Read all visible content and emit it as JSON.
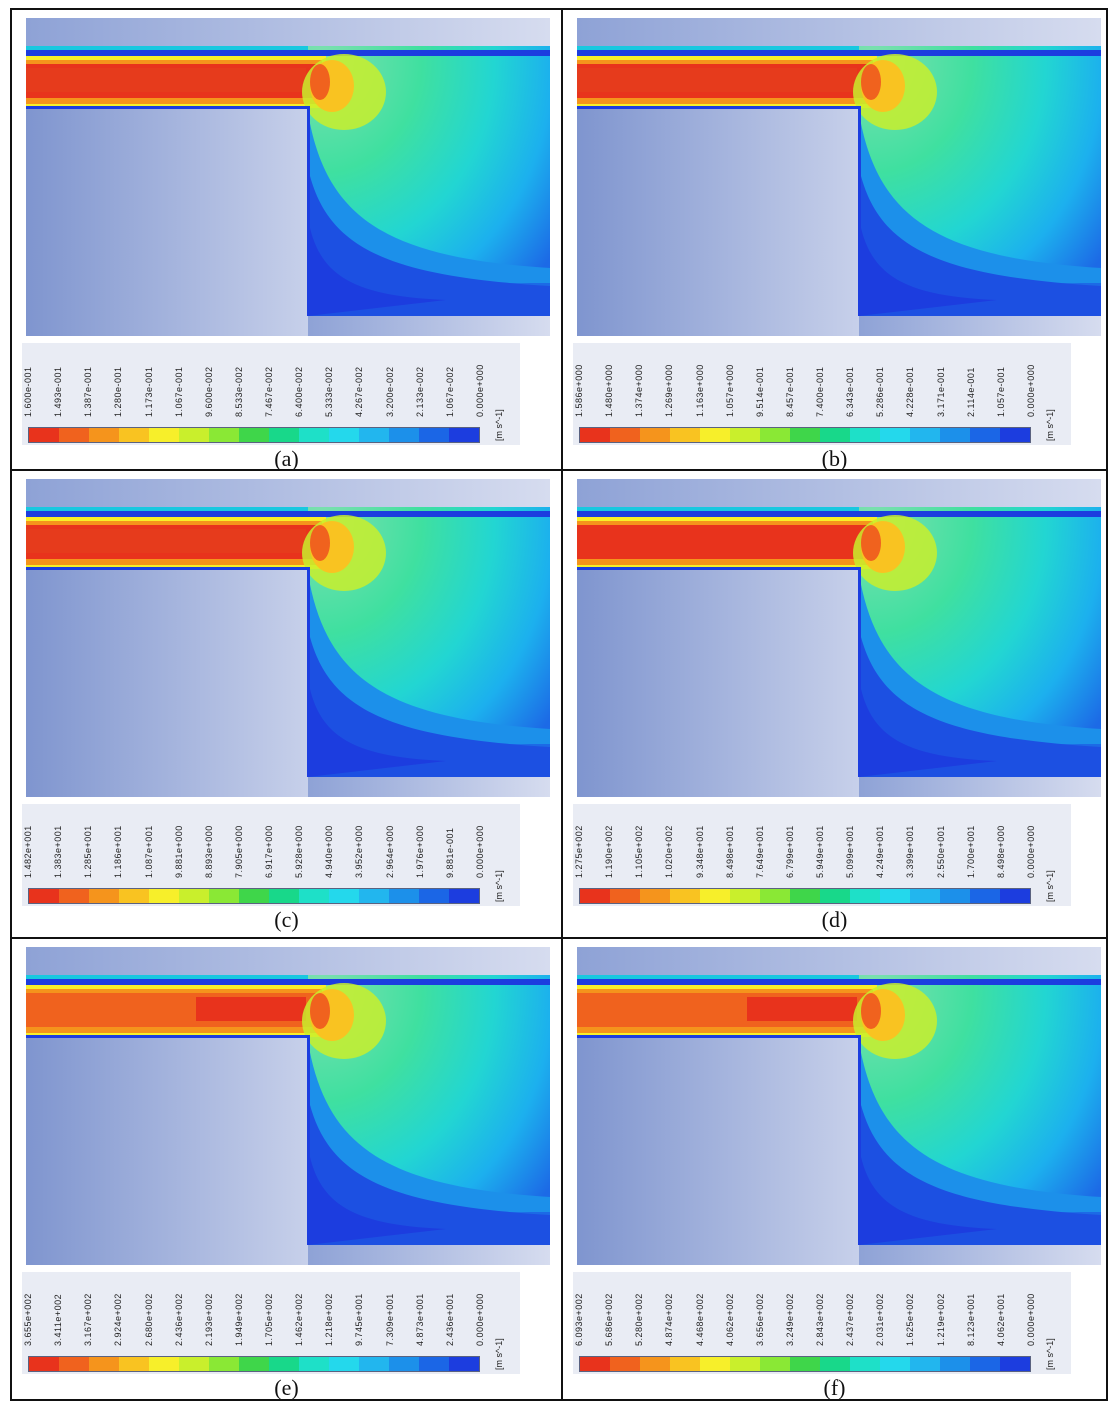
{
  "panels": [
    {
      "caption": "(a)",
      "unit": "[m s^-1]",
      "ticks": [
        "1.600e-001",
        "1.493e-001",
        "1.387e-001",
        "1.280e-001",
        "1.173e-001",
        "1.067e-001",
        "9.600e-002",
        "8.533e-002",
        "7.467e-002",
        "6.400e-002",
        "5.333e-002",
        "4.267e-002",
        "3.200e-002",
        "2.133e-002",
        "1.067e-002",
        "0.000e+000"
      ]
    },
    {
      "caption": "(b)",
      "unit": "[m s^-1]",
      "ticks": [
        "1.586e+000",
        "1.480e+000",
        "1.374e+000",
        "1.269e+000",
        "1.163e+000",
        "1.057e+000",
        "9.514e-001",
        "8.457e-001",
        "7.400e-001",
        "6.343e-001",
        "5.286e-001",
        "4.228e-001",
        "3.171e-001",
        "2.114e-001",
        "1.057e-001",
        "0.000e+000"
      ]
    },
    {
      "caption": "(c)",
      "unit": "[m s^-1]",
      "ticks": [
        "1.482e+001",
        "1.383e+001",
        "1.285e+001",
        "1.186e+001",
        "1.087e+001",
        "9.881e+000",
        "8.893e+000",
        "7.905e+000",
        "6.917e+000",
        "5.928e+000",
        "4.940e+000",
        "3.952e+000",
        "2.964e+000",
        "1.976e+000",
        "9.881e-001",
        "0.000e+000"
      ]
    },
    {
      "caption": "(d)",
      "unit": "[m s^-1]",
      "ticks": [
        "1.275e+002",
        "1.190e+002",
        "1.105e+002",
        "1.020e+002",
        "9.348e+001",
        "8.498e+001",
        "7.649e+001",
        "6.799e+001",
        "5.949e+001",
        "5.099e+001",
        "4.249e+001",
        "3.399e+001",
        "2.550e+001",
        "1.700e+001",
        "8.498e+000",
        "0.000e+000"
      ]
    },
    {
      "caption": "(e)",
      "unit": "[m s^-1]",
      "ticks": [
        "3.655e+002",
        "3.411e+002",
        "3.167e+002",
        "2.924e+002",
        "2.680e+002",
        "2.436e+002",
        "2.193e+002",
        "1.949e+002",
        "1.705e+002",
        "1.462e+002",
        "1.218e+002",
        "9.745e+001",
        "7.309e+001",
        "4.873e+001",
        "2.436e+001",
        "0.000e+000"
      ]
    },
    {
      "caption": "(f)",
      "unit": "[m s^-1]",
      "ticks": [
        "6.093e+002",
        "5.686e+002",
        "5.280e+002",
        "4.874e+002",
        "4.468e+002",
        "4.062e+002",
        "3.656e+002",
        "3.249e+002",
        "2.843e+002",
        "2.437e+002",
        "2.031e+002",
        "1.625e+002",
        "1.219e+002",
        "8.123e+001",
        "4.062e+001",
        "0.000e+000"
      ]
    }
  ],
  "colormap": [
    "#e8331c",
    "#f0621e",
    "#f5941c",
    "#f9c321",
    "#f7ef2a",
    "#c9ef2c",
    "#8ae835",
    "#3fd64a",
    "#18d88a",
    "#1ee0c8",
    "#24d8ec",
    "#22b6ee",
    "#1c90ea",
    "#1b66e6",
    "#1c3ddf"
  ]
}
